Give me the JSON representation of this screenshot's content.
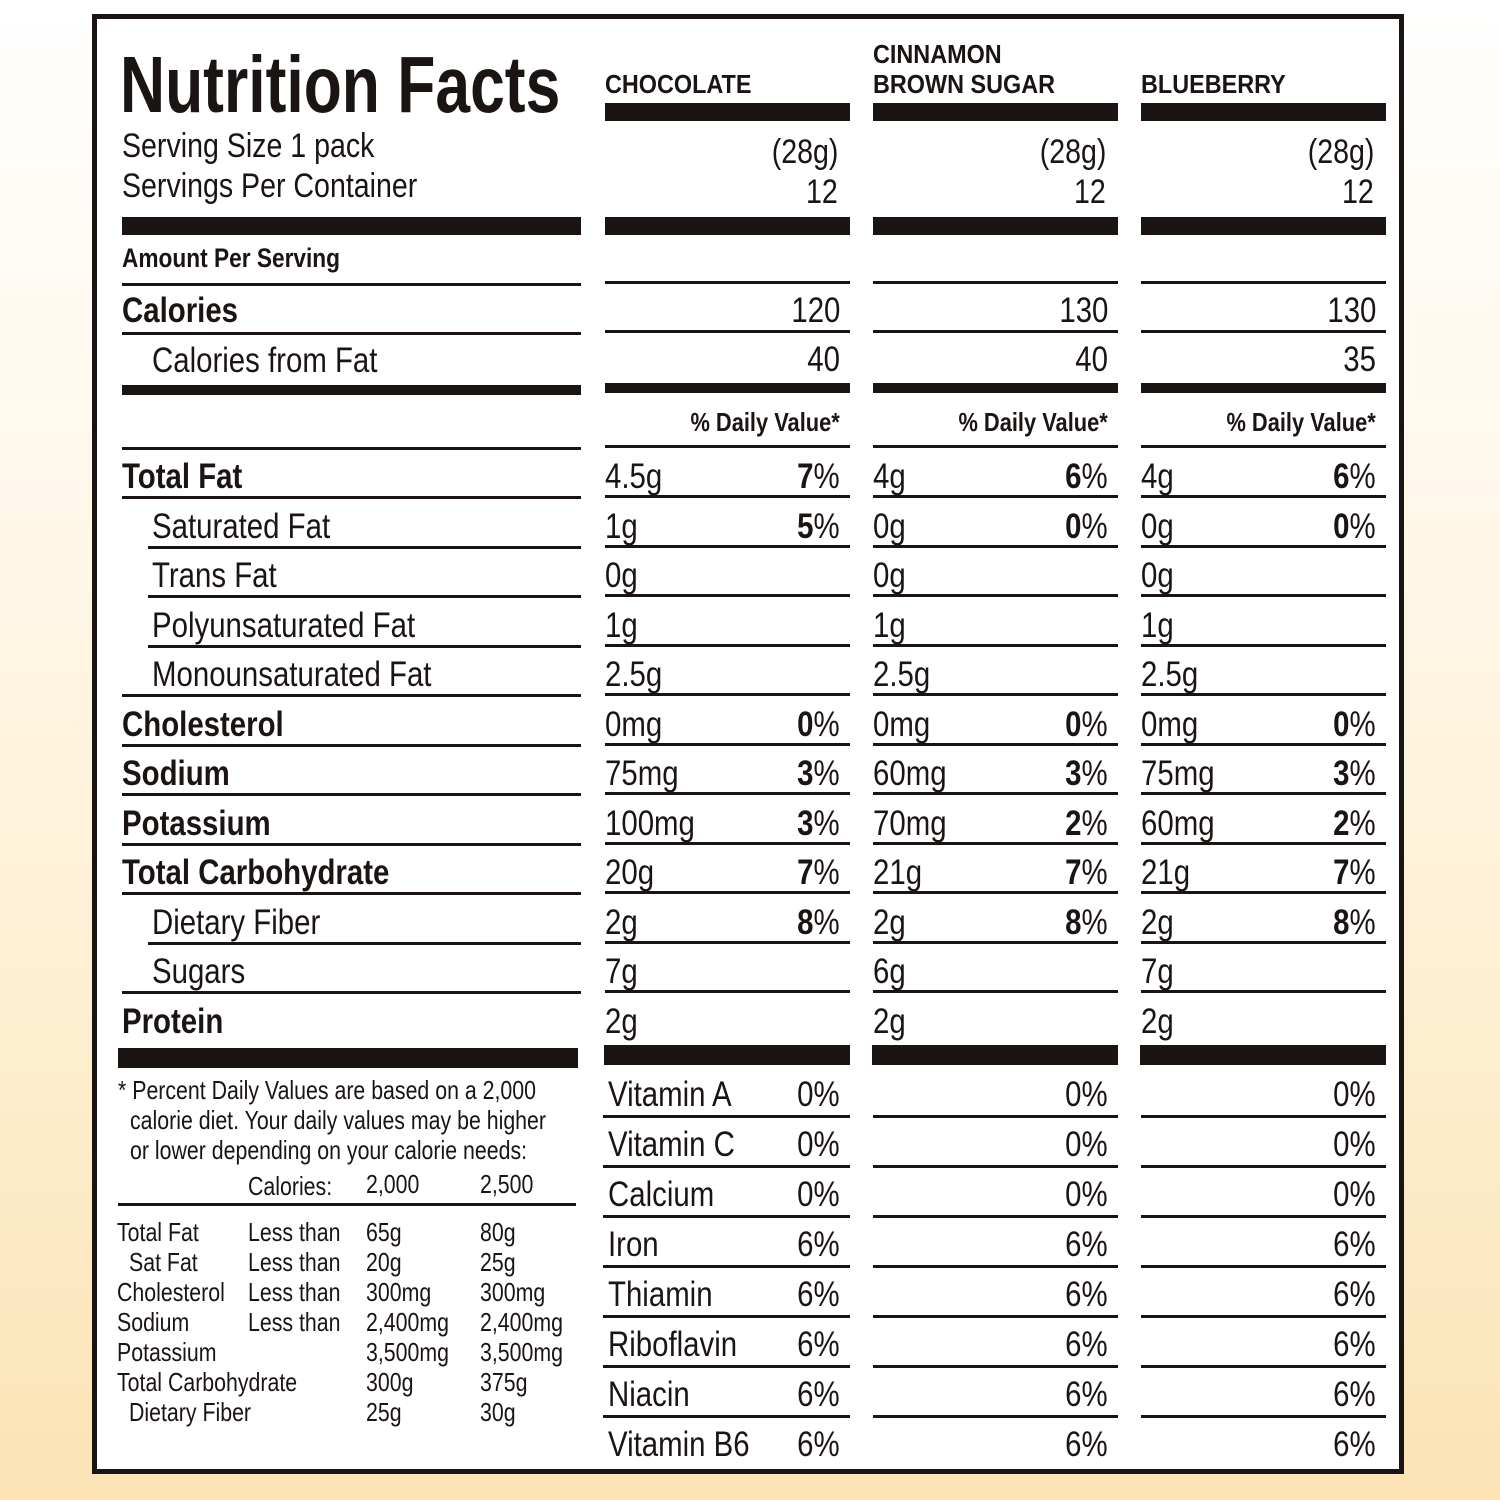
{
  "title": "Nutrition Facts",
  "serving": {
    "size_text": "Serving Size 1 pack",
    "per_container_text": "Servings Per Container"
  },
  "amount_per_serving": "Amount Per Serving",
  "daily_value_header": "% Daily Value*",
  "rows": [
    {
      "label": "Calories",
      "bold": true,
      "indent": false
    },
    {
      "label": "Calories from Fat",
      "bold": false,
      "indent": true
    },
    {
      "label": "Total Fat",
      "bold": true,
      "indent": false
    },
    {
      "label": "Saturated Fat",
      "bold": false,
      "indent": true
    },
    {
      "label": "Trans Fat",
      "bold": false,
      "indent": true
    },
    {
      "label": "Polyunsaturated Fat",
      "bold": false,
      "indent": true
    },
    {
      "label": "Monounsaturated Fat",
      "bold": false,
      "indent": true
    },
    {
      "label": "Cholesterol",
      "bold": true,
      "indent": false
    },
    {
      "label": "Sodium",
      "bold": true,
      "indent": false
    },
    {
      "label": "Potassium",
      "bold": true,
      "indent": false
    },
    {
      "label": "Total Carbohydrate",
      "bold": true,
      "indent": false
    },
    {
      "label": "Dietary Fiber",
      "bold": false,
      "indent": true
    },
    {
      "label": "Sugars",
      "bold": false,
      "indent": true
    },
    {
      "label": "Protein",
      "bold": true,
      "indent": false
    }
  ],
  "vitamins": [
    "Vitamin A",
    "Vitamin C",
    "Calcium",
    "Iron",
    "Thiamin",
    "Riboflavin",
    "Niacin",
    "Vitamin B6"
  ],
  "flavors": [
    {
      "name_lines": [
        "CHOCOLATE"
      ],
      "serving_size": "(28g)",
      "servings": "12",
      "calories": "120",
      "calories_from_fat": "40",
      "nutrients": [
        {
          "amount": "4.5g",
          "pct": "7"
        },
        {
          "amount": "1g",
          "pct": "5"
        },
        {
          "amount": "0g",
          "pct": ""
        },
        {
          "amount": "1g",
          "pct": ""
        },
        {
          "amount": "2.5g",
          "pct": ""
        },
        {
          "amount": "0mg",
          "pct": "0"
        },
        {
          "amount": "75mg",
          "pct": "3"
        },
        {
          "amount": "100mg",
          "pct": "3"
        },
        {
          "amount": "20g",
          "pct": "7"
        },
        {
          "amount": "2g",
          "pct": "8"
        },
        {
          "amount": "7g",
          "pct": ""
        },
        {
          "amount": "2g",
          "pct": ""
        }
      ],
      "vitamins": [
        "0%",
        "0%",
        "0%",
        "6%",
        "6%",
        "6%",
        "6%",
        "6%"
      ]
    },
    {
      "name_lines": [
        "CINNAMON",
        "BROWN SUGAR"
      ],
      "serving_size": "(28g)",
      "servings": "12",
      "calories": "130",
      "calories_from_fat": "40",
      "nutrients": [
        {
          "amount": "4g",
          "pct": "6"
        },
        {
          "amount": "0g",
          "pct": "0"
        },
        {
          "amount": "0g",
          "pct": ""
        },
        {
          "amount": "1g",
          "pct": ""
        },
        {
          "amount": "2.5g",
          "pct": ""
        },
        {
          "amount": "0mg",
          "pct": "0"
        },
        {
          "amount": "60mg",
          "pct": "3"
        },
        {
          "amount": "70mg",
          "pct": "2"
        },
        {
          "amount": "21g",
          "pct": "7"
        },
        {
          "amount": "2g",
          "pct": "8"
        },
        {
          "amount": "6g",
          "pct": ""
        },
        {
          "amount": "2g",
          "pct": ""
        }
      ],
      "vitamins": [
        "0%",
        "0%",
        "0%",
        "6%",
        "6%",
        "6%",
        "6%",
        "6%"
      ]
    },
    {
      "name_lines": [
        "BLUEBERRY"
      ],
      "serving_size": "(28g)",
      "servings": "12",
      "calories": "130",
      "calories_from_fat": "35",
      "nutrients": [
        {
          "amount": "4g",
          "pct": "6"
        },
        {
          "amount": "0g",
          "pct": "0"
        },
        {
          "amount": "0g",
          "pct": ""
        },
        {
          "amount": "1g",
          "pct": ""
        },
        {
          "amount": "2.5g",
          "pct": ""
        },
        {
          "amount": "0mg",
          "pct": "0"
        },
        {
          "amount": "75mg",
          "pct": "3"
        },
        {
          "amount": "60mg",
          "pct": "2"
        },
        {
          "amount": "21g",
          "pct": "7"
        },
        {
          "amount": "2g",
          "pct": "8"
        },
        {
          "amount": "7g",
          "pct": ""
        },
        {
          "amount": "2g",
          "pct": ""
        }
      ],
      "vitamins": [
        "0%",
        "0%",
        "0%",
        "6%",
        "6%",
        "6%",
        "6%",
        "6%"
      ]
    }
  ],
  "footnote": {
    "lines": [
      "* Percent Daily Values are based on a 2,000",
      "calorie diet. Your daily values may be higher",
      "or lower depending on your calorie needs:"
    ],
    "header": {
      "label": "Calories:",
      "c1": "2,000",
      "c2": "2,500"
    },
    "rows": [
      {
        "name": "Total Fat",
        "qual": "Less than",
        "c1": "65g",
        "c2": "80g",
        "indent": false
      },
      {
        "name": "Sat Fat",
        "qual": "Less than",
        "c1": "20g",
        "c2": "25g",
        "indent": true
      },
      {
        "name": "Cholesterol",
        "qual": "Less than",
        "c1": "300mg",
        "c2": "300mg",
        "indent": false
      },
      {
        "name": "Sodium",
        "qual": "Less than",
        "c1": "2,400mg",
        "c2": "2,400mg",
        "indent": false
      },
      {
        "name": "Potassium",
        "qual": "",
        "c1": "3,500mg",
        "c2": "3,500mg",
        "indent": false
      },
      {
        "name": "Total Carbohydrate",
        "qual": "",
        "c1": "300g",
        "c2": "375g",
        "indent": false
      },
      {
        "name": "Dietary Fiber",
        "qual": "",
        "c1": "25g",
        "c2": "30g",
        "indent": true
      }
    ]
  },
  "colors": {
    "ink": "#1a1413",
    "panel": "#ffffff"
  }
}
